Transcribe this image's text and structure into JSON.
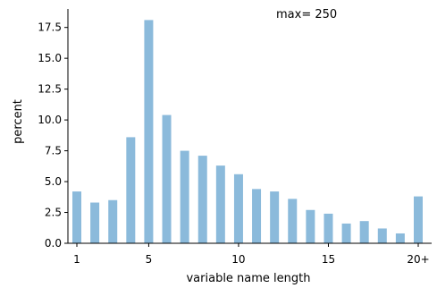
{
  "chart_data": {
    "type": "bar",
    "xlabel": "variable name length",
    "ylabel": "percent",
    "annotation": "max= 250",
    "x": [
      1,
      2,
      3,
      4,
      5,
      6,
      7,
      8,
      9,
      10,
      11,
      12,
      13,
      14,
      15,
      16,
      17,
      18,
      19,
      20
    ],
    "values": [
      4.2,
      3.3,
      3.5,
      8.6,
      18.1,
      10.4,
      7.5,
      7.1,
      6.3,
      5.6,
      4.4,
      4.2,
      3.6,
      2.7,
      2.4,
      1.6,
      1.8,
      1.2,
      0.8,
      3.8
    ],
    "xticks": [
      1,
      5,
      10,
      15,
      20
    ],
    "xtick_labels": [
      "1",
      "5",
      "10",
      "15",
      "20+"
    ],
    "yticks": [
      0.0,
      2.5,
      5.0,
      7.5,
      10.0,
      12.5,
      15.0,
      17.5
    ],
    "ytick_labels": [
      "0.0",
      "2.5",
      "5.0",
      "7.5",
      "10.0",
      "12.5",
      "15.0",
      "17.5"
    ],
    "xlim": [
      0.5,
      20.5
    ],
    "ylim": [
      0,
      19.0
    ],
    "bar_color": "#8bbadb",
    "grid": false,
    "spines": "left-bottom"
  }
}
